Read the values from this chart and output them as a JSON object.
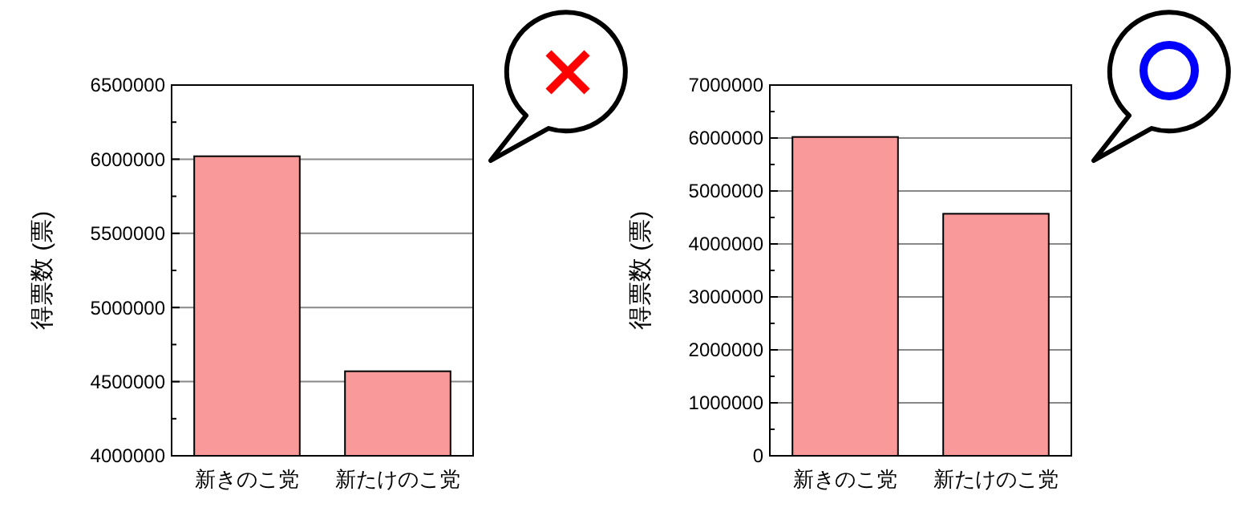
{
  "chart_data": [
    {
      "type": "bar",
      "ylabel": "得票数 (票)",
      "categories": [
        "新きのこ党",
        "新たけのこ党"
      ],
      "values": [
        6020000,
        4570000
      ],
      "color": "#fa9999",
      "ylim": [
        4000000,
        6500000
      ],
      "yticks": [
        4000000,
        {
          "value": 4250000,
          "label": null
        },
        4500000,
        {
          "value": 4750000,
          "label": null
        },
        5000000,
        {
          "value": 5250000,
          "label": null
        },
        5500000,
        {
          "value": 5750000,
          "label": null
        },
        6000000,
        {
          "value": 6250000,
          "label": null
        },
        6500000
      ],
      "grid": "y"
    },
    {
      "type": "bar",
      "ylabel": "得票数 (票)",
      "categories": [
        "新きのこ党",
        "新たけのこ党"
      ],
      "values": [
        6020000,
        4570000
      ],
      "color": "#fa9999",
      "ylim": [
        0,
        7000000
      ],
      "yticks": [
        0,
        {
          "value": 500000,
          "label": null
        },
        1000000,
        {
          "value": 1500000,
          "label": null
        },
        2000000,
        {
          "value": 2500000,
          "label": null
        },
        3000000,
        {
          "value": 3500000,
          "label": null
        },
        4000000,
        {
          "value": 4500000,
          "label": null
        },
        5000000,
        {
          "value": 5500000,
          "label": null
        },
        6000000,
        {
          "value": 6500000,
          "label": null
        },
        7000000
      ],
      "grid": "y"
    }
  ]
}
